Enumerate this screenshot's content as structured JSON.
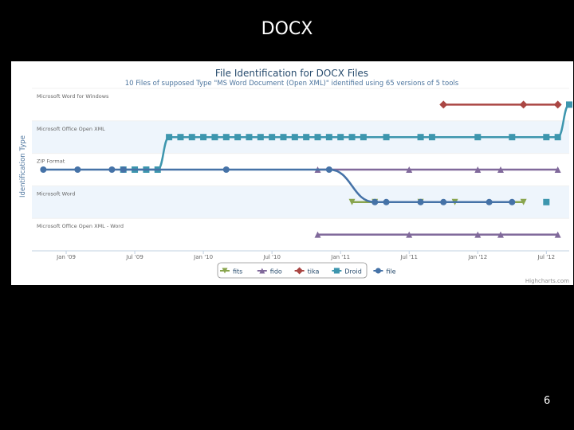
{
  "slide": {
    "title": "DOCX",
    "number": "6"
  },
  "chart_data": {
    "type": "line",
    "title": "File Identification for DOCX Files",
    "subtitle": "10 Files of supposed Type \"MS Word Document (Open XML)\" identified using 65 versions of 5 tools",
    "xlabel": "",
    "ylabel": "Identification Type",
    "credits": "Highcharts.com",
    "categories": [
      "Microsoft Word for Windows",
      "Microsoft Office Open XML",
      "ZIP Format",
      "Microsoft Word",
      "Microsoft Office Open XML - Word"
    ],
    "x_ticks": [
      "Jan '09",
      "Jul '09",
      "Jan '10",
      "Jul '10",
      "Jan '11",
      "Jul '11",
      "Jan '12",
      "Jul '12"
    ],
    "xlim": [
      "2008-10",
      "2012-09"
    ],
    "grid": true,
    "legend_position": "bottom-center",
    "series": [
      {
        "name": "fits",
        "color": "#89A54E",
        "marker": "triangle-down",
        "points": [
          {
            "x": "2011-02",
            "y": "Microsoft Word"
          },
          {
            "x": "2011-04",
            "y": "Microsoft Word"
          },
          {
            "x": "2011-08",
            "y": "Microsoft Word"
          },
          {
            "x": "2011-11",
            "y": "Microsoft Word"
          },
          {
            "x": "2012-05",
            "y": "Microsoft Word"
          }
        ]
      },
      {
        "name": "fido",
        "color": "#80699B",
        "marker": "triangle",
        "segments": [
          [
            {
              "x": "2010-11",
              "y": "ZIP Format"
            },
            {
              "x": "2011-07",
              "y": "ZIP Format"
            },
            {
              "x": "2012-01",
              "y": "ZIP Format"
            },
            {
              "x": "2012-03",
              "y": "ZIP Format"
            },
            {
              "x": "2012-08",
              "y": "ZIP Format"
            }
          ],
          [
            {
              "x": "2010-11",
              "y": "Microsoft Office Open XML - Word"
            },
            {
              "x": "2011-07",
              "y": "Microsoft Office Open XML - Word"
            },
            {
              "x": "2012-01",
              "y": "Microsoft Office Open XML - Word"
            },
            {
              "x": "2012-03",
              "y": "Microsoft Office Open XML - Word"
            },
            {
              "x": "2012-08",
              "y": "Microsoft Office Open XML - Word"
            }
          ]
        ]
      },
      {
        "name": "tika",
        "color": "#AA4643",
        "marker": "diamond",
        "points": [
          {
            "x": "2011-10",
            "y": "Microsoft Word for Windows"
          },
          {
            "x": "2012-05",
            "y": "Microsoft Word for Windows"
          },
          {
            "x": "2012-08",
            "y": "Microsoft Word for Windows"
          }
        ]
      },
      {
        "name": "Droid",
        "color": "#3D96AE",
        "marker": "square",
        "points": [
          {
            "x": "2009-06",
            "y": "ZIP Format"
          },
          {
            "x": "2009-07",
            "y": "ZIP Format"
          },
          {
            "x": "2009-08",
            "y": "ZIP Format"
          },
          {
            "x": "2009-09",
            "y": "ZIP Format"
          },
          {
            "x": "2009-10",
            "y": "Microsoft Office Open XML"
          },
          {
            "x": "2009-11",
            "y": "Microsoft Office Open XML"
          },
          {
            "x": "2009-12",
            "y": "Microsoft Office Open XML"
          },
          {
            "x": "2010-01",
            "y": "Microsoft Office Open XML"
          },
          {
            "x": "2010-02",
            "y": "Microsoft Office Open XML"
          },
          {
            "x": "2010-03",
            "y": "Microsoft Office Open XML"
          },
          {
            "x": "2010-04",
            "y": "Microsoft Office Open XML"
          },
          {
            "x": "2010-05",
            "y": "Microsoft Office Open XML"
          },
          {
            "x": "2010-06",
            "y": "Microsoft Office Open XML"
          },
          {
            "x": "2010-07",
            "y": "Microsoft Office Open XML"
          },
          {
            "x": "2010-08",
            "y": "Microsoft Office Open XML"
          },
          {
            "x": "2010-09",
            "y": "Microsoft Office Open XML"
          },
          {
            "x": "2010-10",
            "y": "Microsoft Office Open XML"
          },
          {
            "x": "2010-11",
            "y": "Microsoft Office Open XML"
          },
          {
            "x": "2010-12",
            "y": "Microsoft Office Open XML"
          },
          {
            "x": "2011-01",
            "y": "Microsoft Office Open XML"
          },
          {
            "x": "2011-02",
            "y": "Microsoft Office Open XML"
          },
          {
            "x": "2011-03",
            "y": "Microsoft Office Open XML"
          },
          {
            "x": "2011-05",
            "y": "Microsoft Office Open XML"
          },
          {
            "x": "2011-08",
            "y": "Microsoft Office Open XML"
          },
          {
            "x": "2011-09",
            "y": "Microsoft Office Open XML"
          },
          {
            "x": "2012-01",
            "y": "Microsoft Office Open XML"
          },
          {
            "x": "2012-04",
            "y": "Microsoft Office Open XML"
          },
          {
            "x": "2012-07",
            "y": "Microsoft Office Open XML"
          },
          {
            "x": "2012-08",
            "y": "Microsoft Office Open XML"
          },
          {
            "x": "2012-09",
            "y": "Microsoft Word for Windows"
          }
        ],
        "isolated": [
          {
            "x": "2012-07",
            "y": "Microsoft Word"
          }
        ]
      },
      {
        "name": "file",
        "color": "#4572A7",
        "marker": "circle",
        "points": [
          {
            "x": "2008-11",
            "y": "ZIP Format"
          },
          {
            "x": "2009-02",
            "y": "ZIP Format"
          },
          {
            "x": "2009-05",
            "y": "ZIP Format"
          },
          {
            "x": "2009-06",
            "y": "ZIP Format"
          },
          {
            "x": "2010-03",
            "y": "ZIP Format"
          },
          {
            "x": "2010-12",
            "y": "ZIP Format"
          },
          {
            "x": "2011-04",
            "y": "Microsoft Word"
          },
          {
            "x": "2011-05",
            "y": "Microsoft Word"
          },
          {
            "x": "2011-08",
            "y": "Microsoft Word"
          },
          {
            "x": "2011-10",
            "y": "Microsoft Word"
          },
          {
            "x": "2012-02",
            "y": "Microsoft Word"
          },
          {
            "x": "2012-04",
            "y": "Microsoft Word"
          }
        ]
      }
    ]
  }
}
